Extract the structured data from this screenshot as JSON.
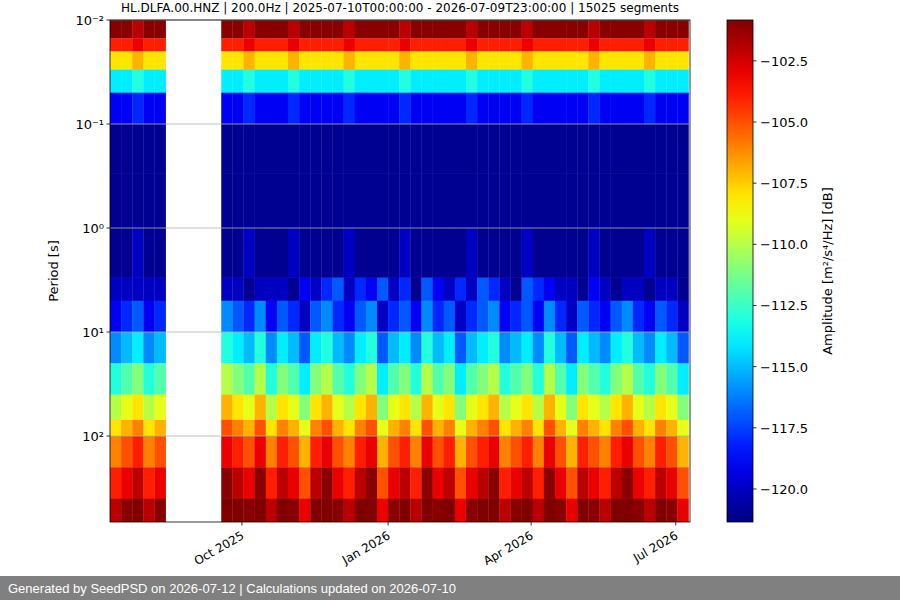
{
  "chart_data": {
    "type": "heatmap",
    "title": "HL.DLFA.00.HNZ | 200.0Hz | 2025-07-10T00:00:00 - 2026-07-09T23:00:00 | 15025 segments",
    "y_label": "Period [s]",
    "color": "jet",
    "log": "y",
    "grid": "y",
    "xlim": [
      "2025-07-10T00:00:00",
      "2026-07-09T23:00:00"
    ],
    "xticks": [
      {
        "value": "2025-10-01",
        "label": "Oct 2025"
      },
      {
        "value": "2026-01-01",
        "label": "Jan 2026"
      },
      {
        "value": "2026-04-01",
        "label": "Apr 2026"
      },
      {
        "value": "2026-07-01",
        "label": "Jul 2026"
      }
    ],
    "ylim": [
      0.01,
      671
    ],
    "yticks": [
      {
        "value": 0.01,
        "label": "10⁻²"
      },
      {
        "value": 0.1,
        "label": "10⁻¹"
      },
      {
        "value": 1,
        "label": "10⁰"
      },
      {
        "value": 10,
        "label": "10¹"
      },
      {
        "value": 100,
        "label": "10²"
      }
    ],
    "x_bins": [
      "2025-07-10",
      "2025-07-17",
      "2025-07-24",
      "2025-07-31",
      "2025-08-07",
      "2025-08-14",
      "2025-08-21",
      "2025-08-28",
      "2025-09-04",
      "2025-09-11",
      "2025-09-18",
      "2025-09-25",
      "2025-10-02",
      "2025-10-09",
      "2025-10-16",
      "2025-10-23",
      "2025-10-30",
      "2025-11-06",
      "2025-11-13",
      "2025-11-20",
      "2025-11-27",
      "2025-12-04",
      "2025-12-11",
      "2025-12-18",
      "2025-12-25",
      "2026-01-01",
      "2026-01-08",
      "2026-01-15",
      "2026-01-22",
      "2026-01-29",
      "2026-02-05",
      "2026-02-12",
      "2026-02-19",
      "2026-02-26",
      "2026-03-05",
      "2026-03-12",
      "2026-03-19",
      "2026-03-26",
      "2026-04-02",
      "2026-04-09",
      "2026-04-16",
      "2026-04-23",
      "2026-04-30",
      "2026-05-07",
      "2026-05-14",
      "2026-05-21",
      "2026-05-28",
      "2026-06-04",
      "2026-06-11",
      "2026-06-18",
      "2026-06-25",
      "2026-07-02",
      "2026-07-09"
    ],
    "y_bins": [
      0.01,
      0.015,
      0.02,
      0.03,
      0.05,
      0.1,
      0.3,
      1,
      3,
      5,
      10,
      20,
      40,
      70,
      100,
      200,
      400,
      671
    ],
    "cells": [
      [
        -101,
        -101,
        -102,
        -101,
        -101,
        null,
        null,
        null,
        null,
        null,
        -101,
        -101,
        -102,
        -101,
        -101,
        -101,
        -102,
        -101,
        -101,
        -101,
        -101,
        -102,
        -101,
        -101,
        -101,
        -101,
        -102,
        -101,
        -101,
        -101,
        -101,
        -101,
        -102,
        -101,
        -101,
        -101,
        -101,
        -102,
        -101,
        -101,
        -101,
        -101,
        -101,
        -102,
        -101,
        -101,
        -101,
        -101,
        -102,
        -101,
        -101,
        -101
      ],
      [
        -104,
        -104,
        -103,
        -104,
        -104,
        null,
        null,
        null,
        null,
        null,
        -104,
        -104,
        -103,
        -104,
        -104,
        -104,
        -103,
        -104,
        -104,
        -104,
        -104,
        -103,
        -104,
        -104,
        -104,
        -104,
        -103,
        -104,
        -104,
        -104,
        -104,
        -104,
        -103,
        -104,
        -104,
        -104,
        -104,
        -103,
        -104,
        -104,
        -104,
        -104,
        -104,
        -103,
        -104,
        -104,
        -104,
        -104,
        -103,
        -104,
        -104,
        -104
      ],
      [
        -108,
        -108,
        -107,
        -108,
        -108,
        null,
        null,
        null,
        null,
        null,
        -108,
        -108,
        -107,
        -108,
        -108,
        -108,
        -107,
        -108,
        -108,
        -108,
        -108,
        -107,
        -108,
        -108,
        -108,
        -108,
        -107,
        -108,
        -108,
        -108,
        -108,
        -108,
        -107,
        -108,
        -108,
        -108,
        -108,
        -107,
        -108,
        -108,
        -108,
        -108,
        -108,
        -107,
        -108,
        -108,
        -108,
        -108,
        -107,
        -108,
        -108,
        -108
      ],
      [
        -114,
        -114,
        -113,
        -114,
        -114,
        null,
        null,
        null,
        null,
        null,
        -114,
        -114,
        -113,
        -114,
        -114,
        -114,
        -113,
        -114,
        -114,
        -114,
        -114,
        -113,
        -114,
        -114,
        -114,
        -114,
        -113,
        -114,
        -114,
        -114,
        -114,
        -114,
        -113,
        -114,
        -114,
        -114,
        -114,
        -113,
        -114,
        -114,
        -114,
        -114,
        -114,
        -113,
        -114,
        -114,
        -114,
        -114,
        -113,
        -114,
        -114,
        -114
      ],
      [
        -119,
        -119,
        -118,
        -119,
        -119,
        null,
        null,
        null,
        null,
        null,
        -119,
        -119,
        -118,
        -119,
        -119,
        -119,
        -118,
        -119,
        -119,
        -119,
        -119,
        -118,
        -119,
        -119,
        -119,
        -119,
        -118,
        -119,
        -119,
        -119,
        -119,
        -119,
        -118,
        -119,
        -119,
        -119,
        -119,
        -118,
        -119,
        -119,
        -119,
        -119,
        -119,
        -118,
        -119,
        -119,
        -119,
        -119,
        -118,
        -119,
        -119,
        -119
      ],
      [
        -121,
        -121,
        -121,
        -121,
        -121,
        null,
        null,
        null,
        null,
        null,
        -121,
        -121,
        -121,
        -121,
        -121,
        -121,
        -121,
        -121,
        -121,
        -121,
        -121,
        -121,
        -121,
        -121,
        -121,
        -121,
        -121,
        -121,
        -121,
        -121,
        -121,
        -121,
        -121,
        -121,
        -121,
        -121,
        -121,
        -121,
        -121,
        -121,
        -121,
        -121,
        -121,
        -121,
        -121,
        -121,
        -121,
        -121,
        -121,
        -121,
        -121,
        -121
      ],
      [
        -121,
        -121,
        -121,
        -121,
        -121,
        null,
        null,
        null,
        null,
        null,
        -121,
        -121,
        -121,
        -121,
        -121,
        -121,
        -121,
        -121,
        -121,
        -121,
        -121,
        -121,
        -121,
        -121,
        -121,
        -121,
        -121,
        -121,
        -121,
        -121,
        -121,
        -121,
        -121,
        -121,
        -121,
        -121,
        -121,
        -121,
        -121,
        -121,
        -121,
        -121,
        -121,
        -121,
        -121,
        -121,
        -121,
        -121,
        -121,
        -121,
        -121,
        -121
      ],
      [
        -121,
        -121,
        -120,
        -121,
        -121,
        null,
        null,
        null,
        null,
        null,
        -121,
        -121,
        -120,
        -121,
        -121,
        -121,
        -120,
        -121,
        -121,
        -121,
        -121,
        -120,
        -121,
        -121,
        -121,
        -121,
        -120,
        -121,
        -121,
        -121,
        -121,
        -121,
        -120,
        -121,
        -121,
        -121,
        -121,
        -120,
        -121,
        -121,
        -121,
        -121,
        -121,
        -120,
        -121,
        -121,
        -121,
        -121,
        -120,
        -121,
        -121,
        -121
      ],
      [
        -120,
        -120,
        -120,
        -120,
        -120,
        null,
        null,
        null,
        null,
        null,
        -120,
        -120,
        -121,
        -120,
        -120,
        -120,
        -121,
        -119,
        -120,
        -118,
        -117,
        -120,
        -118,
        -119,
        -117,
        -120,
        -118,
        -121,
        -117,
        -119,
        -120,
        -118,
        -120,
        -117,
        -118,
        -120,
        -121,
        -117,
        -118,
        -119,
        -120,
        -120,
        -121,
        -119,
        -120,
        -121,
        -120,
        -120,
        -121,
        -120,
        -120,
        -121
      ],
      [
        -119,
        -118,
        -117,
        -119,
        -118,
        null,
        null,
        null,
        null,
        null,
        -116,
        -117,
        -118,
        -116,
        -119,
        -117,
        -118,
        -120,
        -117,
        -116,
        -118,
        -119,
        -117,
        -116,
        -120,
        -118,
        -117,
        -119,
        -116,
        -118,
        -117,
        -120,
        -118,
        -117,
        -116,
        -119,
        -118,
        -117,
        -119,
        -116,
        -118,
        -120,
        -117,
        -118,
        -119,
        -117,
        -116,
        -118,
        -119,
        -117,
        -118,
        -120
      ],
      [
        -116,
        -115,
        -114,
        -116,
        -115,
        null,
        null,
        null,
        null,
        null,
        -113,
        -114,
        -115,
        -113,
        -116,
        -114,
        -115,
        -117,
        -114,
        -113,
        -115,
        -116,
        -114,
        -113,
        -117,
        -115,
        -114,
        -116,
        -113,
        -115,
        -114,
        -117,
        -115,
        -114,
        -113,
        -116,
        -115,
        -114,
        -116,
        -113,
        -115,
        -117,
        -114,
        -115,
        -116,
        -114,
        -113,
        -115,
        -116,
        -114,
        -115,
        -117
      ],
      [
        -113,
        -112,
        -111,
        -113,
        -112,
        null,
        null,
        null,
        null,
        null,
        -110,
        -111,
        -112,
        -110,
        -113,
        -111,
        -112,
        -114,
        -111,
        -110,
        -112,
        -113,
        -111,
        -110,
        -114,
        -112,
        -111,
        -113,
        -110,
        -112,
        -111,
        -114,
        -112,
        -111,
        -110,
        -113,
        -112,
        -111,
        -113,
        -110,
        -112,
        -114,
        -111,
        -112,
        -113,
        -111,
        -110,
        -112,
        -113,
        -111,
        -112,
        -114
      ],
      [
        -110,
        -109,
        -108,
        -110,
        -109,
        null,
        null,
        null,
        null,
        null,
        -107,
        -108,
        -109,
        -107,
        -110,
        -108,
        -109,
        -111,
        -108,
        -107,
        -109,
        -110,
        -108,
        -107,
        -111,
        -109,
        -108,
        -110,
        -107,
        -109,
        -108,
        -111,
        -109,
        -108,
        -107,
        -110,
        -109,
        -108,
        -110,
        -107,
        -109,
        -111,
        -108,
        -109,
        -110,
        -108,
        -107,
        -109,
        -110,
        -108,
        -109,
        -111
      ],
      [
        -108,
        -107,
        -106,
        -108,
        -107,
        null,
        null,
        null,
        null,
        null,
        -105,
        -106,
        -107,
        -105,
        -108,
        -106,
        -107,
        -109,
        -106,
        -105,
        -107,
        -108,
        -106,
        -105,
        -109,
        -107,
        -106,
        -108,
        -105,
        -107,
        -106,
        -109,
        -107,
        -106,
        -105,
        -108,
        -107,
        -106,
        -108,
        -105,
        -107,
        -109,
        -106,
        -107,
        -108,
        -106,
        -105,
        -107,
        -108,
        -106,
        -107,
        -109
      ],
      [
        -106,
        -105,
        -104,
        -106,
        -105,
        null,
        null,
        null,
        null,
        null,
        -103,
        -104,
        -105,
        -103,
        -106,
        -104,
        -105,
        -107,
        -104,
        -103,
        -105,
        -106,
        -104,
        -103,
        -107,
        -105,
        -104,
        -106,
        -103,
        -105,
        -104,
        -107,
        -105,
        -104,
        -103,
        -106,
        -105,
        -104,
        -106,
        -103,
        -105,
        -107,
        -104,
        -105,
        -106,
        -104,
        -103,
        -105,
        -106,
        -104,
        -105,
        -107
      ],
      [
        -104,
        -103,
        -102,
        -104,
        -103,
        null,
        null,
        null,
        null,
        null,
        -101,
        -102,
        -103,
        -101,
        -104,
        -102,
        -103,
        -105,
        -102,
        -101,
        -103,
        -104,
        -102,
        -101,
        -105,
        -103,
        -102,
        -104,
        -101,
        -103,
        -102,
        -105,
        -103,
        -102,
        -101,
        -104,
        -103,
        -102,
        -104,
        -101,
        -103,
        -105,
        -102,
        -103,
        -104,
        -102,
        -101,
        -103,
        -104,
        -102,
        -103,
        -105
      ],
      [
        -102,
        -101,
        -100,
        -102,
        -101,
        null,
        null,
        null,
        null,
        null,
        -99,
        -100,
        -101,
        -99,
        -102,
        -100,
        -101,
        -103,
        -100,
        -99,
        -101,
        -102,
        -100,
        -99,
        -103,
        -101,
        -100,
        -102,
        -99,
        -101,
        -100,
        -103,
        -101,
        -100,
        -99,
        -102,
        -101,
        -100,
        -102,
        -99,
        -101,
        -103,
        -100,
        -101,
        -102,
        -100,
        -99,
        -101,
        -102,
        -100,
        -101,
        -103
      ]
    ],
    "colorbar": {
      "label": "Amplitude [m²/s⁴/Hz] [dB]",
      "range": [
        -121.35,
        -100.83
      ],
      "ticks": [
        {
          "value": -102.5,
          "label": "−102.5"
        },
        {
          "value": -105,
          "label": "−105.0"
        },
        {
          "value": -107.5,
          "label": "−107.5"
        },
        {
          "value": -110,
          "label": "−110.0"
        },
        {
          "value": -112.5,
          "label": "−112.5"
        },
        {
          "value": -115,
          "label": "−115.0"
        },
        {
          "value": -117.5,
          "label": "−117.5"
        },
        {
          "value": -120,
          "label": "−120.0"
        }
      ]
    }
  },
  "footer": "Generated by SeedPSD on 2026-07-12 | Calculations updated on 2026-07-10"
}
